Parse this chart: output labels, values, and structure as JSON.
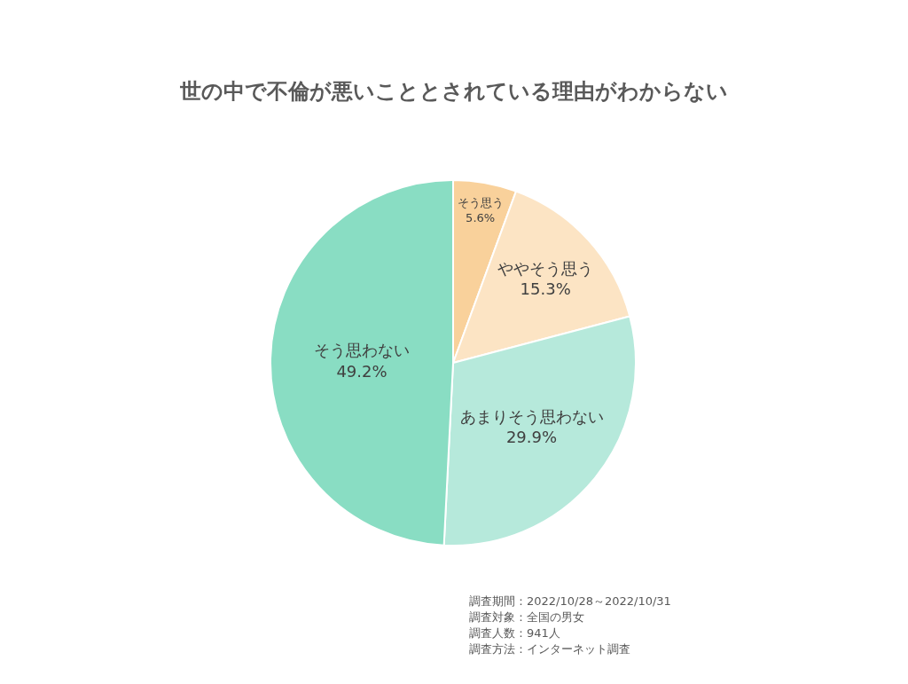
{
  "chart_data": {
    "type": "pie",
    "title": "世の中で不倫が悪いこととされている理由がわからない",
    "categories": [
      "そう思う",
      "ややそう思う",
      "あまりそう思わない",
      "そう思わない"
    ],
    "values": [
      5.6,
      15.3,
      29.9,
      49.2
    ],
    "value_labels": [
      "5.6%",
      "15.3%",
      "29.9%",
      "49.2%"
    ],
    "colors": [
      "#f9d19b",
      "#fce4c4",
      "#b6e9db",
      "#89ddc3"
    ],
    "annotations": [
      "調査期間：2022/10/28～2022/10/31",
      "調査対象：全国の男女",
      "調査人数：941人",
      "調査方法：インターネット調査"
    ]
  }
}
